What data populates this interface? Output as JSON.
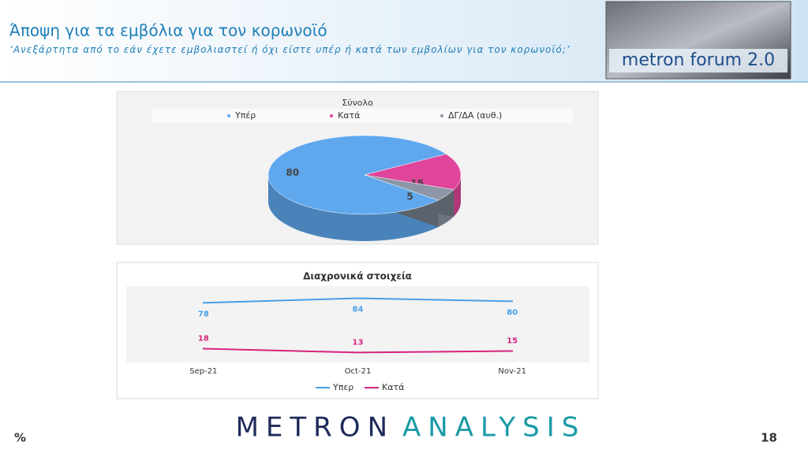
{
  "header": {
    "title": "Άποψη για τα εμβόλια για τον κορωνοϊό",
    "subtitle": "‘Ανεξάρτητα από το εάν έχετε εμβολιαστεί ή όχι είστε υπέρ ή κατά των εμβολίων για τον κορωνοϊό;’",
    "logo": "metron forum 2.0"
  },
  "chart_data": [
    {
      "type": "pie",
      "title": "Σύνολο",
      "categories": [
        "Υπέρ",
        "Κατά",
        "ΔΓ/ΔΑ (αυθ.)"
      ],
      "values": [
        80,
        15,
        5
      ],
      "colors": [
        "#5fa8ee",
        "#e0459b",
        "#8c96a6"
      ]
    },
    {
      "type": "line",
      "title": "Διαχρονικά στοιχεία",
      "categories": [
        "Sep-21",
        "Oct-21",
        "Nov-21"
      ],
      "ylim": [
        0,
        100
      ],
      "series": [
        {
          "name": "Υπερ",
          "color": "#4a9ee8",
          "values": [
            78,
            84,
            80
          ]
        },
        {
          "name": "Κατά",
          "color": "#d6247f",
          "values": [
            18,
            13,
            15
          ]
        }
      ]
    }
  ],
  "footer": {
    "unit": "%",
    "brand_left": "METRON",
    "brand_right": "ANALYSIS",
    "page": "18"
  }
}
